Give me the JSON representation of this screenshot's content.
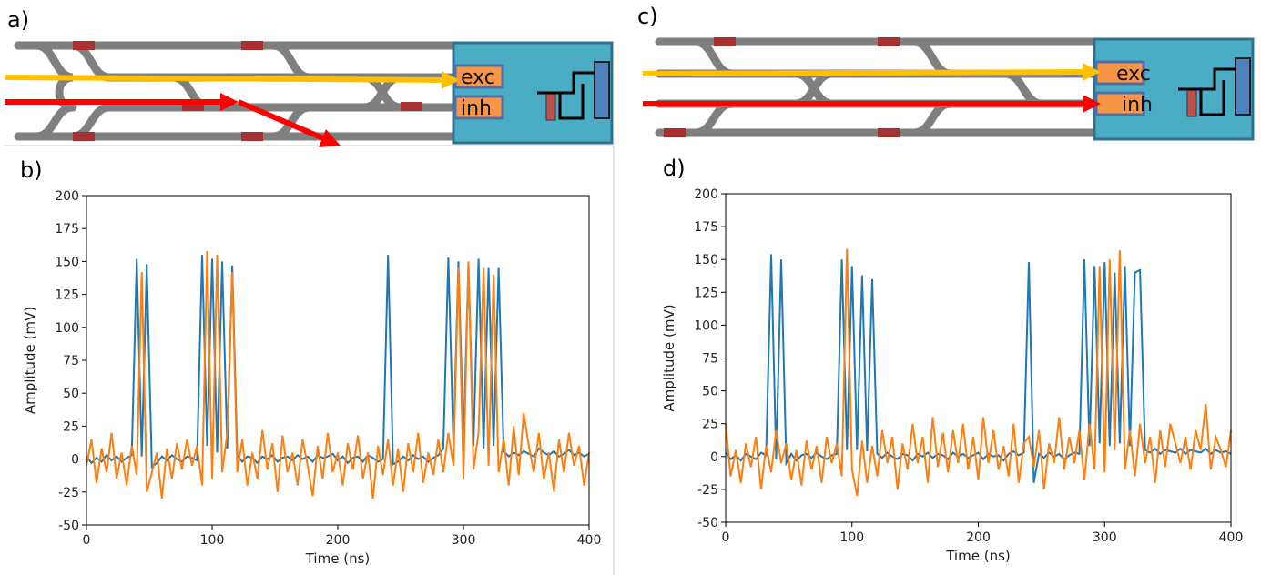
{
  "chart_data": [
    {
      "type": "line",
      "panel_label": "b)",
      "xlabel": "Time (ns)",
      "ylabel": "Amplitude (mV)",
      "x": [
        0,
        4,
        8,
        12,
        16,
        20,
        24,
        28,
        32,
        36,
        40,
        44,
        48,
        52,
        56,
        60,
        64,
        68,
        72,
        76,
        80,
        84,
        88,
        92,
        96,
        100,
        104,
        108,
        112,
        116,
        120,
        124,
        128,
        132,
        136,
        140,
        144,
        148,
        152,
        156,
        160,
        164,
        168,
        172,
        176,
        180,
        184,
        188,
        192,
        196,
        200,
        204,
        208,
        212,
        216,
        220,
        224,
        228,
        232,
        236,
        240,
        244,
        248,
        252,
        256,
        260,
        264,
        268,
        272,
        276,
        280,
        284,
        288,
        292,
        296,
        300,
        304,
        308,
        312,
        316,
        320,
        324,
        328,
        332,
        336,
        340,
        344,
        348,
        352,
        356,
        360,
        364,
        368,
        372,
        376,
        380,
        384,
        388,
        392,
        396,
        400
      ],
      "series": [
        {
          "color": "#1f77b4",
          "values": [
            2,
            -3,
            1,
            -2,
            3,
            -1,
            2,
            -2,
            1,
            3,
            152,
            2,
            148,
            -6,
            -3,
            2,
            -1,
            3,
            0,
            -2,
            2,
            1,
            -1,
            155,
            10,
            152,
            5,
            150,
            8,
            147,
            3,
            -2,
            2,
            1,
            -3,
            2,
            0,
            3,
            -2,
            1,
            2,
            -1,
            3,
            0,
            2,
            -2,
            3,
            1,
            2,
            4,
            -1,
            2,
            -3,
            1,
            2,
            -2,
            3,
            1,
            -2,
            0,
            155,
            -4,
            -2,
            2,
            -1,
            3,
            0,
            2,
            -2,
            1,
            3,
            8,
            153,
            10,
            150,
            12,
            148,
            10,
            152,
            8,
            145,
            10,
            145,
            6,
            2,
            5,
            3,
            6,
            4,
            2,
            8,
            5,
            3,
            6,
            2,
            4,
            7,
            3,
            5,
            2,
            4
          ]
        },
        {
          "color": "#ff7f0e",
          "values": [
            -5,
            15,
            -18,
            8,
            -10,
            20,
            -15,
            5,
            -20,
            10,
            -12,
            142,
            -25,
            -10,
            5,
            -30,
            8,
            -15,
            12,
            -8,
            15,
            -5,
            10,
            -20,
            158,
            -15,
            155,
            -10,
            20,
            142,
            -10,
            15,
            -20,
            5,
            -15,
            22,
            -8,
            12,
            -25,
            18,
            -10,
            5,
            -20,
            15,
            -5,
            -28,
            10,
            -15,
            20,
            -10,
            5,
            -20,
            12,
            -8,
            18,
            -15,
            5,
            -30,
            10,
            -12,
            15,
            -20,
            8,
            -25,
            12,
            -10,
            20,
            -18,
            5,
            -12,
            15,
            -10,
            20,
            -5,
            145,
            -15,
            150,
            -8,
            20,
            145,
            -5,
            140,
            -10,
            15,
            -20,
            25,
            -12,
            35,
            10,
            -10,
            20,
            -15,
            5,
            -25,
            15,
            -10,
            20,
            -5,
            10,
            -20,
            5
          ]
        }
      ],
      "xlim": [
        0,
        400
      ],
      "ylim": [
        -50,
        200
      ],
      "xticks": [
        0,
        100,
        200,
        300,
        400
      ],
      "yticks": [
        -50,
        -25,
        0,
        25,
        50,
        75,
        100,
        125,
        150,
        175,
        200
      ]
    },
    {
      "type": "line",
      "panel_label": "d)",
      "xlabel": "Time (ns)",
      "ylabel": "Amplitude (mV)",
      "x": [
        0,
        4,
        8,
        12,
        16,
        20,
        24,
        28,
        32,
        36,
        40,
        44,
        48,
        52,
        56,
        60,
        64,
        68,
        72,
        76,
        80,
        84,
        88,
        92,
        96,
        100,
        104,
        108,
        112,
        116,
        120,
        124,
        128,
        132,
        136,
        140,
        144,
        148,
        152,
        156,
        160,
        164,
        168,
        172,
        176,
        180,
        184,
        188,
        192,
        196,
        200,
        204,
        208,
        212,
        216,
        220,
        224,
        228,
        232,
        236,
        240,
        244,
        248,
        252,
        256,
        260,
        264,
        268,
        272,
        276,
        280,
        284,
        288,
        292,
        296,
        300,
        304,
        308,
        312,
        316,
        320,
        324,
        328,
        332,
        336,
        340,
        344,
        348,
        352,
        356,
        360,
        364,
        368,
        372,
        376,
        380,
        384,
        388,
        392,
        396,
        400
      ],
      "series": [
        {
          "color": "#1f77b4",
          "values": [
            3,
            -2,
            1,
            -3,
            2,
            0,
            -2,
            3,
            1,
            154,
            -2,
            150,
            -5,
            2,
            -3,
            1,
            2,
            -1,
            3,
            0,
            -2,
            1,
            2,
            150,
            5,
            145,
            5,
            138,
            4,
            135,
            2,
            -1,
            3,
            0,
            -2,
            2,
            1,
            -3,
            2,
            0,
            3,
            -1,
            2,
            1,
            -2,
            3,
            0,
            2,
            -1,
            1,
            3,
            -2,
            2,
            0,
            1,
            -3,
            2,
            4,
            1,
            3,
            148,
            -20,
            2,
            -1,
            3,
            0,
            2,
            -2,
            1,
            3,
            2,
            150,
            8,
            145,
            10,
            148,
            8,
            140,
            10,
            145,
            8,
            140,
            142,
            5,
            3,
            6,
            2,
            5,
            4,
            3,
            6,
            2,
            5,
            4,
            3,
            6,
            2,
            5,
            3,
            4,
            2
          ]
        },
        {
          "color": "#ff7f0e",
          "values": [
            25,
            -15,
            5,
            -20,
            10,
            -8,
            15,
            -25,
            8,
            -12,
            20,
            -5,
            10,
            -18,
            5,
            -22,
            12,
            -10,
            8,
            -20,
            15,
            -5,
            10,
            -15,
            158,
            -10,
            -30,
            12,
            -20,
            8,
            -15,
            20,
            -5,
            15,
            -25,
            10,
            -10,
            25,
            -5,
            15,
            -20,
            30,
            -8,
            18,
            -12,
            20,
            -5,
            25,
            -10,
            15,
            -18,
            30,
            -5,
            20,
            -10,
            8,
            -15,
            25,
            -20,
            10,
            15,
            -8,
            20,
            -25,
            10,
            -5,
            30,
            -10,
            15,
            -5,
            20,
            -18,
            25,
            -10,
            145,
            -12,
            150,
            5,
            157,
            -10,
            20,
            -15,
            25,
            -5,
            15,
            -20,
            20,
            -8,
            25,
            10,
            -5,
            15,
            -10,
            20,
            5,
            40,
            -10,
            15,
            5,
            -8,
            20
          ]
        }
      ],
      "xlim": [
        0,
        400
      ],
      "ylim": [
        -50,
        200
      ],
      "xticks": [
        0,
        100,
        200,
        300,
        400
      ],
      "yticks": [
        -50,
        -25,
        0,
        25,
        50,
        75,
        100,
        125,
        150,
        175,
        200
      ]
    }
  ],
  "diagrams": [
    {
      "panel_label": "a)",
      "exc": "exc",
      "inh": "inh"
    },
    {
      "panel_label": "c)",
      "exc": "exc",
      "inh": "inh"
    }
  ]
}
